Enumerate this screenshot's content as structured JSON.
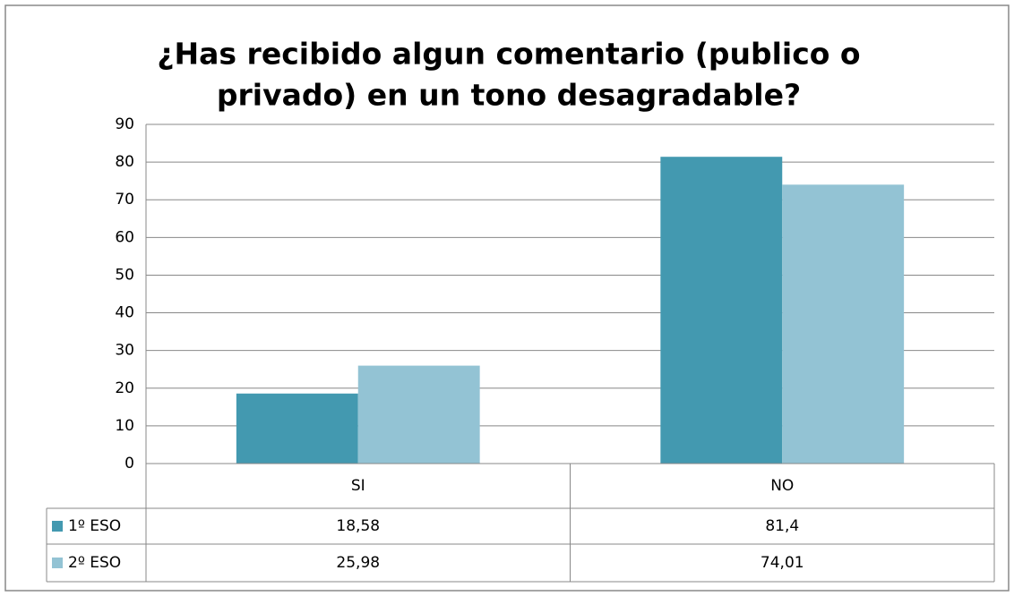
{
  "chart_data": {
    "type": "bar",
    "title": [
      "¿Has recibido algun comentario (publico o",
      "privado) en un tono desagradable?"
    ],
    "categories": [
      "SI",
      "NO"
    ],
    "series": [
      {
        "name": "1º ESO",
        "color": "#4399b0",
        "values": [
          18.58,
          81.4
        ],
        "value_labels": [
          "18,58",
          "81,4"
        ]
      },
      {
        "name": "2º ESO",
        "color": "#93c3d4",
        "values": [
          25.98,
          74.01
        ],
        "value_labels": [
          "25,98",
          "74,01"
        ]
      }
    ],
    "ylim": [
      0,
      90
    ],
    "yticks": [
      0,
      10,
      20,
      30,
      40,
      50,
      60,
      70,
      80,
      90
    ],
    "grid": true
  }
}
